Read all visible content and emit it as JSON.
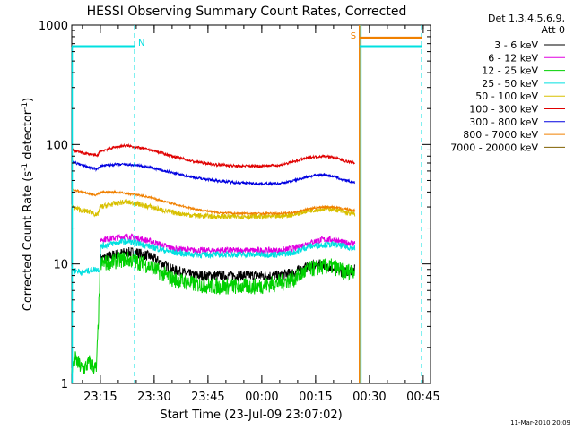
{
  "chart_data": {
    "type": "line",
    "title": "HESSI Observing Summary Count Rates, Corrected",
    "xlabel": "Start Time (23-Jul-09 23:07:02)",
    "ylabel": "Corrected Count Rate (s",
    "ylabel_sup1": "-1",
    "ylabel_mid": " detector",
    "ylabel_sup2": "-1",
    "ylabel_end": ")",
    "yscale": "log",
    "ylim": [
      1,
      1000
    ],
    "xlim_minutes": [
      0,
      100
    ],
    "x_ticks": [
      {
        "label": "23:15",
        "min": 7.97
      },
      {
        "label": "23:30",
        "min": 22.97
      },
      {
        "label": "23:45",
        "min": 37.97
      },
      {
        "label": "00:00",
        "min": 52.97
      },
      {
        "label": "00:15",
        "min": 67.97
      },
      {
        "label": "00:30",
        "min": 82.97
      },
      {
        "label": "00:45",
        "min": 97.97
      }
    ],
    "y_ticks": [
      {
        "label": "1",
        "value": 1
      },
      {
        "label": "10",
        "value": 10
      },
      {
        "label": "100",
        "value": 100
      },
      {
        "label": "1000",
        "value": 1000
      }
    ],
    "legend": {
      "header1": "Det 1,3,4,5,6,9,",
      "header2": "Att 0",
      "placement": "right"
    },
    "series": [
      {
        "name": "3 - 6 keV",
        "color": "#000000",
        "noise": 0.1,
        "x": [
          0,
          7,
          8,
          12,
          15,
          18,
          22,
          28,
          34,
          40,
          46,
          52,
          58,
          62,
          66,
          70,
          73,
          76,
          79
        ],
        "y": [
          null,
          null,
          11,
          12,
          12.5,
          12.5,
          11.5,
          9,
          8,
          8,
          8,
          8,
          8,
          8.5,
          9.5,
          10,
          9,
          8.5,
          9
        ]
      },
      {
        "name": "6 - 12 keV",
        "color": "#e000e0",
        "noise": 0.06,
        "x": [
          0,
          7,
          8,
          12,
          15,
          18,
          22,
          28,
          34,
          40,
          46,
          52,
          58,
          62,
          66,
          70,
          73,
          76,
          79
        ],
        "y": [
          null,
          null,
          16,
          16.5,
          17,
          16.5,
          15.5,
          13.5,
          13,
          13,
          13,
          13,
          13,
          13.5,
          15,
          16,
          16,
          15,
          15
        ]
      },
      {
        "name": "12 - 25 keV",
        "color": "#00d000",
        "noise": 0.16,
        "x": [
          0,
          1,
          3,
          5,
          6.9,
          7,
          8,
          12,
          15,
          18,
          22,
          28,
          34,
          40,
          46,
          52,
          58,
          62,
          66,
          70,
          73,
          76,
          79
        ],
        "y": [
          1.3,
          1.6,
          1.3,
          1.5,
          1.3,
          1.6,
          10,
          10.5,
          11,
          10.5,
          9.5,
          7.5,
          6.8,
          6.5,
          6.5,
          6.5,
          7,
          7.5,
          9,
          9.5,
          9.5,
          8.5,
          9
        ]
      },
      {
        "name": "25 - 50 keV",
        "color": "#00e0e0",
        "noise": 0.06,
        "x": [
          0,
          3,
          6,
          7,
          7.9,
          8,
          12,
          15,
          18,
          22,
          28,
          34,
          40,
          46,
          52,
          58,
          62,
          66,
          70,
          73,
          76,
          79
        ],
        "y": [
          9,
          8.5,
          9,
          9,
          9,
          14,
          15,
          15.5,
          15,
          14,
          12.5,
          12,
          12,
          12,
          12,
          12,
          12.5,
          14,
          14.5,
          14.5,
          14,
          13.5
        ]
      },
      {
        "name": "50 - 100 keV",
        "color": "#d8c000",
        "noise": 0.05,
        "x": [
          0,
          3,
          6,
          7,
          8,
          12,
          15,
          18,
          22,
          28,
          34,
          40,
          46,
          52,
          58,
          62,
          66,
          70,
          73,
          76,
          79
        ],
        "y": [
          30,
          28,
          27,
          25,
          30,
          32,
          33,
          32,
          30,
          27,
          25.5,
          25,
          25,
          25,
          25,
          26,
          28,
          29,
          29,
          27,
          26
        ]
      },
      {
        "name": "100 - 300 keV",
        "color": "#e00000",
        "noise": 0.025,
        "x": [
          0,
          3,
          6,
          7,
          8,
          12,
          15,
          18,
          22,
          28,
          34,
          40,
          46,
          52,
          58,
          62,
          66,
          70,
          73,
          76,
          79
        ],
        "y": [
          90,
          85,
          82,
          80,
          88,
          95,
          98,
          95,
          90,
          80,
          72,
          68,
          66,
          66,
          67,
          72,
          78,
          80,
          78,
          73,
          70
        ]
      },
      {
        "name": "300 - 800 keV",
        "color": "#0000e0",
        "noise": 0.025,
        "x": [
          0,
          3,
          6,
          7,
          8,
          12,
          15,
          18,
          22,
          28,
          34,
          40,
          46,
          52,
          58,
          62,
          66,
          70,
          73,
          76,
          79
        ],
        "y": [
          72,
          67,
          63,
          62,
          66,
          68,
          68,
          67,
          64,
          58,
          53,
          50,
          48,
          47,
          47,
          50,
          54,
          56,
          54,
          50,
          48
        ]
      },
      {
        "name": "800 - 7000 keV",
        "color": "#f08000",
        "noise": 0.02,
        "x": [
          0,
          3,
          6,
          7,
          8,
          12,
          15,
          18,
          22,
          28,
          34,
          40,
          46,
          52,
          58,
          62,
          66,
          70,
          73,
          76,
          79
        ],
        "y": [
          42,
          40,
          38,
          38,
          40,
          40,
          39,
          38,
          36,
          32,
          29,
          27,
          26.5,
          26.5,
          26.5,
          27,
          29,
          30,
          30,
          29,
          28
        ]
      },
      {
        "name": "7000 - 20000 keV",
        "color": "#806000",
        "noise": 0.02,
        "x": [],
        "y": []
      }
    ],
    "markers": [
      {
        "label": "N",
        "color": "#00e0e0",
        "min": 17.5,
        "from_min": 0,
        "to_min": 17.5,
        "value": 660
      },
      {
        "label": "S",
        "color": "#f08000",
        "min": 80.2,
        "from_min": 80.2,
        "to_min": 97.5,
        "value": 780
      }
    ],
    "cyan_top_segments": [
      {
        "from_min": 0,
        "to_min": 17.5,
        "value": 660
      },
      {
        "from_min": 80.2,
        "to_min": 97.5,
        "value": 660
      }
    ],
    "dashed_lines_min": [
      17.5,
      97.5
    ],
    "solid_cyan_line_min": 80.6,
    "solid_orange_line_min": 80.2,
    "timestamp": "11-Mar-2010 20:09"
  }
}
